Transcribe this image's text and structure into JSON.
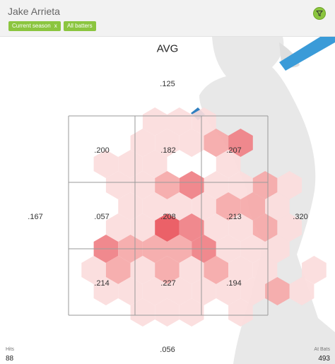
{
  "header": {
    "player_name": "Jake Arrieta",
    "filters": [
      {
        "label": "Current season",
        "remove_glyph": "x"
      },
      {
        "label": "All batters"
      }
    ],
    "filter_icon": "funnel-icon",
    "accent_color": "#8bc53f"
  },
  "metric": {
    "title": "AVG"
  },
  "zone_values": {
    "grid": [
      [
        ".200",
        ".182",
        ".207"
      ],
      [
        ".057",
        ".208",
        ".213"
      ],
      [
        ".214",
        ".227",
        ".194"
      ]
    ],
    "outside": {
      "top": ".125",
      "left": ".167",
      "right": ".320",
      "bottom": ".056"
    }
  },
  "stats": {
    "hits_label": "Hits",
    "hits_value": "88",
    "at_bats_label": "At Bats",
    "at_bats_value": "493"
  },
  "colors": {
    "hex_light": "#fbdcdc",
    "hex_mid": "#f5a8a8",
    "hex_strong": "#ef7f84",
    "hex_hot": "#e9545b",
    "batter_silhouette": "#e8e8e8",
    "bat": "#3a9bd8"
  }
}
